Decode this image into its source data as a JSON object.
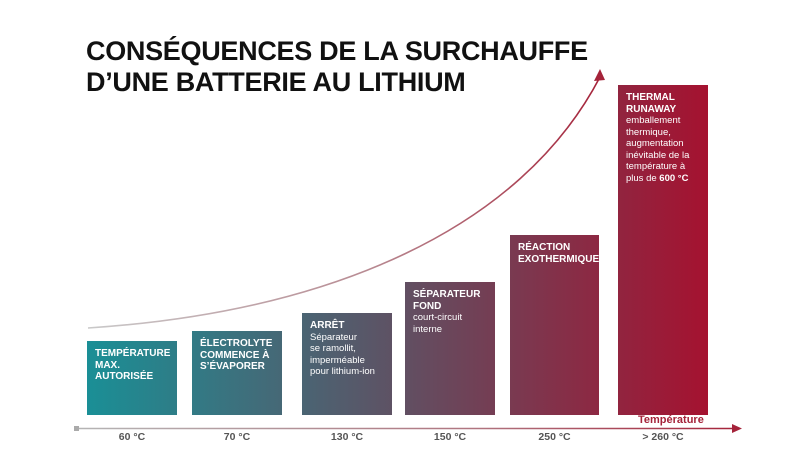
{
  "title": {
    "line1": "CONSÉQUENCES DE LA SURCHAUFFE",
    "line2": "D’UNE BATTERIE AU LITHIUM"
  },
  "axis": {
    "label": "Température"
  },
  "colors": {
    "start": "#1a8f96",
    "end": "#a51230",
    "axis_red": "#a5233a"
  },
  "stages": [
    {
      "heading": "TEMPÉRATURE\nMAX. AUTORISÉE",
      "description": "",
      "temp": "60 °C"
    },
    {
      "heading": "ÉLECTROLYTE\nCOMMENCE À\nS’ÉVAPORER",
      "description": "",
      "temp": "70 °C"
    },
    {
      "heading": "ARRÊT",
      "description": "Séparateur\nse ramollit,\nimperméable\npour lithium-ion",
      "temp": "130 °C"
    },
    {
      "heading": "SÉPARATEUR\nFOND",
      "description": "court-circuit\ninterne",
      "temp": "150 °C"
    },
    {
      "heading": "RÉACTION\nEXOTHERMIQUE",
      "description": "",
      "temp": "250 °C"
    },
    {
      "heading": "THERMAL\nRUNAWAY",
      "description": "emballement\nthermique,\naugmentation\ninévitable de la\ntempérature à\nplus de ",
      "description_bold": "600 °C",
      "temp": "> 260 °C"
    }
  ]
}
